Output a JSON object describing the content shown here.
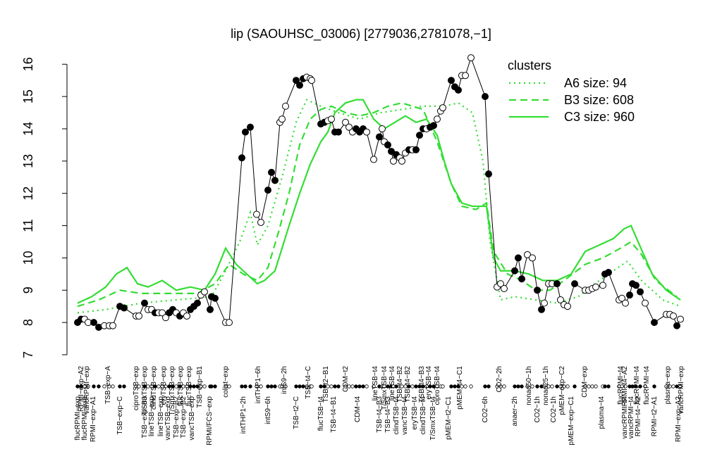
{
  "chart_data": {
    "type": "line",
    "title": "lip (SAOUHSC_03006) [2779036,2781078,−1]",
    "xlim": [
      100,
      975
    ],
    "ylim": [
      7,
      16.3
    ],
    "yticks": [
      7,
      8,
      9,
      10,
      11,
      12,
      13,
      14,
      15,
      16
    ],
    "legend_title": "clusters",
    "legend_position": "top-right",
    "legend_color": "#33dd33",
    "points": {
      "name": "expression",
      "x": [
        110,
        115,
        120,
        125,
        133,
        140,
        148,
        155,
        160,
        170,
        176,
        193,
        197,
        205,
        210,
        215,
        220,
        225,
        230,
        235,
        240,
        245,
        250,
        255,
        260,
        265,
        270,
        275,
        280,
        285,
        290,
        298,
        300,
        305,
        320,
        325,
        343,
        348,
        355,
        364,
        370,
        380,
        385,
        390,
        397,
        400,
        405,
        420,
        425,
        430,
        435,
        440,
        442,
        455,
        460,
        465,
        470,
        475,
        480,
        490,
        495,
        500,
        505,
        510,
        515,
        520,
        530,
        538,
        542,
        545,
        550,
        555,
        558,
        562,
        567,
        570,
        575,
        580,
        585,
        590,
        595,
        600,
        605,
        610,
        615,
        620,
        625,
        628,
        640,
        645,
        650,
        655,
        660,
        668,
        688,
        693,
        705,
        710,
        715,
        730,
        735,
        740,
        748,
        755,
        762,
        768,
        772,
        778,
        783,
        790,
        795,
        800,
        805,
        815,
        830,
        835,
        840,
        845,
        855,
        858,
        863,
        878,
        882,
        887,
        893,
        897,
        902,
        908,
        915,
        928,
        945,
        950,
        955,
        960,
        965
      ],
      "values": [
        8.0,
        8.1,
        8.1,
        8.0,
        8.0,
        7.85,
        7.9,
        7.9,
        7.9,
        8.5,
        8.45,
        8.2,
        8.2,
        8.6,
        8.4,
        8.4,
        8.3,
        8.3,
        8.3,
        8.15,
        8.3,
        8.4,
        8.3,
        8.2,
        8.3,
        8.2,
        8.4,
        8.5,
        8.6,
        8.85,
        8.95,
        8.4,
        8.8,
        8.75,
        8.0,
        8.0,
        13.1,
        13.9,
        14.05,
        11.35,
        11.1,
        12.1,
        12.65,
        12.4,
        14.2,
        14.3,
        14.7,
        15.5,
        15.35,
        15.55,
        15.6,
        15.55,
        15.5,
        14.15,
        14.2,
        14.25,
        14.3,
        13.9,
        13.9,
        14.2,
        14.05,
        13.9,
        14.0,
        13.9,
        14.0,
        13.9,
        13.05,
        13.75,
        14.0,
        13.6,
        13.5,
        13.3,
        13.0,
        13.2,
        13.1,
        13.0,
        13.25,
        13.35,
        13.35,
        13.35,
        13.8,
        14.0,
        14.0,
        14.05,
        14.1,
        14.3,
        14.55,
        14.65,
        15.5,
        15.3,
        15.2,
        15.65,
        15.65,
        16.2,
        15.0,
        12.6,
        9.1,
        9.2,
        9.05,
        9.6,
        10.0,
        9.35,
        10.1,
        10.0,
        9.0,
        8.4,
        8.6,
        9.2,
        9.2,
        9.2,
        8.7,
        8.55,
        8.5,
        9.2,
        9.0,
        9.0,
        9.05,
        9.1,
        9.15,
        9.5,
        9.55,
        8.7,
        8.75,
        8.6,
        8.85,
        9.2,
        9.15,
        8.95,
        8.6,
        8.0,
        8.25,
        8.25,
        8.2,
        7.9,
        8.1
      ],
      "fills": [
        "#000",
        "#000",
        "#fff",
        "#fff",
        "#000",
        "#000",
        "#fff",
        "#fff",
        "#fff",
        "#000",
        "#000",
        "#fff",
        "#fff",
        "#000",
        "#fff",
        "#fff",
        "#000",
        "#fff",
        "#fff",
        "#fff",
        "#000",
        "#000",
        "#fff",
        "#000",
        "#fff",
        "#fff",
        "#000",
        "#000",
        "#000",
        "#fff",
        "#fff",
        "#000",
        "#000",
        "#000",
        "#fff",
        "#fff",
        "#000",
        "#000",
        "#000",
        "#fff",
        "#fff",
        "#000",
        "#000",
        "#000",
        "#fff",
        "#fff",
        "#fff",
        "#000",
        "#000",
        "#000",
        "#fff",
        "#fff",
        "#fff",
        "#000",
        "#000",
        "#fff",
        "#fff",
        "#000",
        "#000",
        "#fff",
        "#fff",
        "#fff",
        "#000",
        "#000",
        "#000",
        "#fff",
        "#fff",
        "#000",
        "#fff",
        "#fff",
        "#000",
        "#000",
        "#fff",
        "#000",
        "#fff",
        "#fff",
        "#fff",
        "#000",
        "#fff",
        "#000",
        "#000",
        "#000",
        "#fff",
        "#000",
        "#000",
        "#fff",
        "#fff",
        "#fff",
        "#000",
        "#000",
        "#000",
        "#fff",
        "#fff",
        "#fff",
        "#000",
        "#000",
        "#fff",
        "#fff",
        "#fff",
        "#000",
        "#000",
        "#000",
        "#fff",
        "#fff",
        "#000",
        "#000",
        "#fff",
        "#fff",
        "#fff",
        "#000",
        "#fff",
        "#fff",
        "#fff",
        "#000",
        "#fff",
        "#fff",
        "#fff",
        "#fff",
        "#fff",
        "#000",
        "#000",
        "#fff",
        "#fff",
        "#fff",
        "#000",
        "#000",
        "#000",
        "#000",
        "#fff",
        "#000",
        "#fff",
        "#fff",
        "#fff",
        "#000",
        "#fff"
      ]
    },
    "series": [
      {
        "name": "A6 size: 94",
        "color": "#33dd33",
        "dash": "dotted",
        "x": [
          110,
          150,
          200,
          250,
          300,
          320,
          340,
          355,
          365,
          380,
          400,
          420,
          435,
          455,
          480,
          510,
          540,
          570,
          600,
          630,
          650,
          670,
          685,
          695,
          710,
          730,
          760,
          790,
          820,
          850,
          870,
          890,
          910,
          940,
          965
        ],
        "values": [
          8.3,
          8.4,
          8.6,
          8.7,
          8.8,
          9.6,
          10.5,
          11.4,
          10.4,
          11.0,
          12.5,
          14.2,
          14.9,
          14.7,
          14.5,
          14.3,
          14.5,
          14.6,
          14.7,
          14.7,
          14.8,
          14.5,
          13.0,
          10.5,
          8.7,
          8.8,
          8.7,
          8.6,
          8.8,
          9.3,
          9.6,
          9.9,
          9.3,
          8.7,
          8.5
        ]
      },
      {
        "name": "B3 size: 608",
        "color": "#33dd33",
        "dash": "dashed",
        "x": [
          110,
          140,
          170,
          200,
          240,
          280,
          305,
          325,
          345,
          365,
          380,
          395,
          410,
          425,
          440,
          455,
          470,
          490,
          510,
          530,
          550,
          570,
          600,
          620,
          640,
          655,
          675,
          690,
          700,
          720,
          740,
          760,
          780,
          800,
          830,
          855,
          880,
          895,
          910,
          930,
          960
        ],
        "values": [
          8.5,
          8.7,
          9.0,
          8.9,
          8.9,
          8.9,
          9.2,
          9.8,
          9.5,
          9.3,
          9.7,
          10.8,
          12.0,
          13.5,
          14.3,
          14.6,
          14.7,
          14.5,
          14.4,
          14.5,
          14.7,
          14.8,
          14.6,
          13.6,
          12.3,
          11.6,
          11.5,
          11.7,
          10.2,
          9.5,
          9.3,
          9.0,
          9.0,
          9.3,
          9.8,
          10.0,
          10.3,
          10.5,
          10.1,
          9.3,
          8.8
        ]
      },
      {
        "name": "C3 size: 960",
        "color": "#33dd33",
        "dash": "solid",
        "x": [
          110,
          130,
          150,
          165,
          180,
          195,
          210,
          230,
          250,
          270,
          290,
          305,
          320,
          335,
          350,
          365,
          375,
          390,
          410,
          425,
          440,
          455,
          465,
          475,
          490,
          505,
          515,
          530,
          545,
          560,
          575,
          590,
          605,
          620,
          630,
          640,
          655,
          670,
          690,
          700,
          710,
          730,
          750,
          770,
          790,
          810,
          830,
          850,
          870,
          885,
          895,
          905,
          925,
          945,
          965
        ],
        "values": [
          8.6,
          8.8,
          9.1,
          9.5,
          9.7,
          9.2,
          9.1,
          9.3,
          9.0,
          9.1,
          9.0,
          9.5,
          10.3,
          9.8,
          9.5,
          9.2,
          9.3,
          9.6,
          11.0,
          12.0,
          12.9,
          13.6,
          13.9,
          14.5,
          14.8,
          14.9,
          14.9,
          14.3,
          14.0,
          14.2,
          14.4,
          14.2,
          14.3,
          13.8,
          13.0,
          12.3,
          11.7,
          11.6,
          11.6,
          10.0,
          9.6,
          9.6,
          9.5,
          9.3,
          9.3,
          9.5,
          10.2,
          10.4,
          10.6,
          10.9,
          11.0,
          10.5,
          9.5,
          9.0,
          8.7
        ]
      }
    ],
    "top_labels": {
      "x": [
        115,
        123,
        153,
        193,
        205,
        218,
        232,
        244,
        256,
        268,
        283,
        320,
        366,
        403,
        437,
        462,
        490,
        532,
        545,
        556,
        567,
        578,
        598,
        608,
        620,
        652,
        708,
        750,
        774,
        797,
        829,
        880,
        886,
        903,
        917,
        947,
        966
      ],
      "labels": [
        "RPMI−exp−A2",
        "vancRPMI−exp",
        "TSB−exp−A",
        "ciproTSB−exp",
        "T/SmxTSB−exp",
        "clindTSB−exp",
        "eryTSB−exp",
        "T/SmxTSB−exp",
        "flucTSB−exp",
        "flucTSB−exp",
        "TSB−exp−B1",
        "colist−exp",
        "intTHP1−6h",
        "intS9−2h",
        "TSB−t4−C",
        "TSB−t2−B1",
        "CDM−t2",
        "lineTSB−t4",
        "T/SmxTSB−t4",
        "lineTSB−t4",
        "TSB−t4−B2",
        "TSB−t4−B2",
        "TSB−t4−B3",
        "eryTSB−t4",
        "ciproTSB−t4",
        "pMEM−t4−C1",
        "CO2−2h",
        "nonad50−1h",
        "nonad25−1h",
        "pMEM−exp−C2",
        "CDM−exp",
        "flucRPMI−t4",
        "RPMI−t4−A2",
        "flucRPMI−t4",
        "flucRPMI−t4",
        "plasma−exp",
        "vancRPMI−exp"
      ]
    },
    "bottom_labels": {
      "x": [
        110,
        120,
        132,
        170,
        205,
        215,
        228,
        238,
        250,
        260,
        272,
        297,
        345,
        380,
        420,
        455,
        473,
        507,
        538,
        550,
        562,
        574,
        588,
        600,
        614,
        636,
        688,
        730,
        762,
        785,
        810,
        853,
        886,
        895,
        905,
        928,
        962
      ],
      "labels": [
        "flucRPMI−exp",
        "flucRPMI−exp",
        "RPMI−exp−A1",
        "TSB−exp−C",
        "TSB−exp−B3",
        "lineTSB−exp",
        "lineTSB−exp",
        "vancTSB−exp",
        "TSB−exp−B2",
        "TSB−exp−B2",
        "vancTSB−exp",
        "RPMI/FCS−exp",
        "intTHP1−2h",
        "intS9−6h",
        "TSB−t2−C",
        "flucTSB−t4",
        "TSB−t4−B1",
        "CDM−t4",
        "TSB−t4−B3",
        "TSB−t4−B3",
        "clindTSB−t4",
        "vancTSB−t4",
        "eryTSB−t4",
        "clindTSB−t4",
        "T/SmxTSB−t4",
        "pMEM−t2−C1",
        "CO2−6h",
        "anaer−2h",
        "CO2−1h",
        "CO2−1h",
        "pMEM−exp−C1",
        "plasma−t4",
        "vancRPMI−t4",
        "vancRPMI−t4",
        "RPMI−t4−A2",
        "RPMI−t2−A1",
        "RPMI−exp−A2"
      ]
    }
  }
}
